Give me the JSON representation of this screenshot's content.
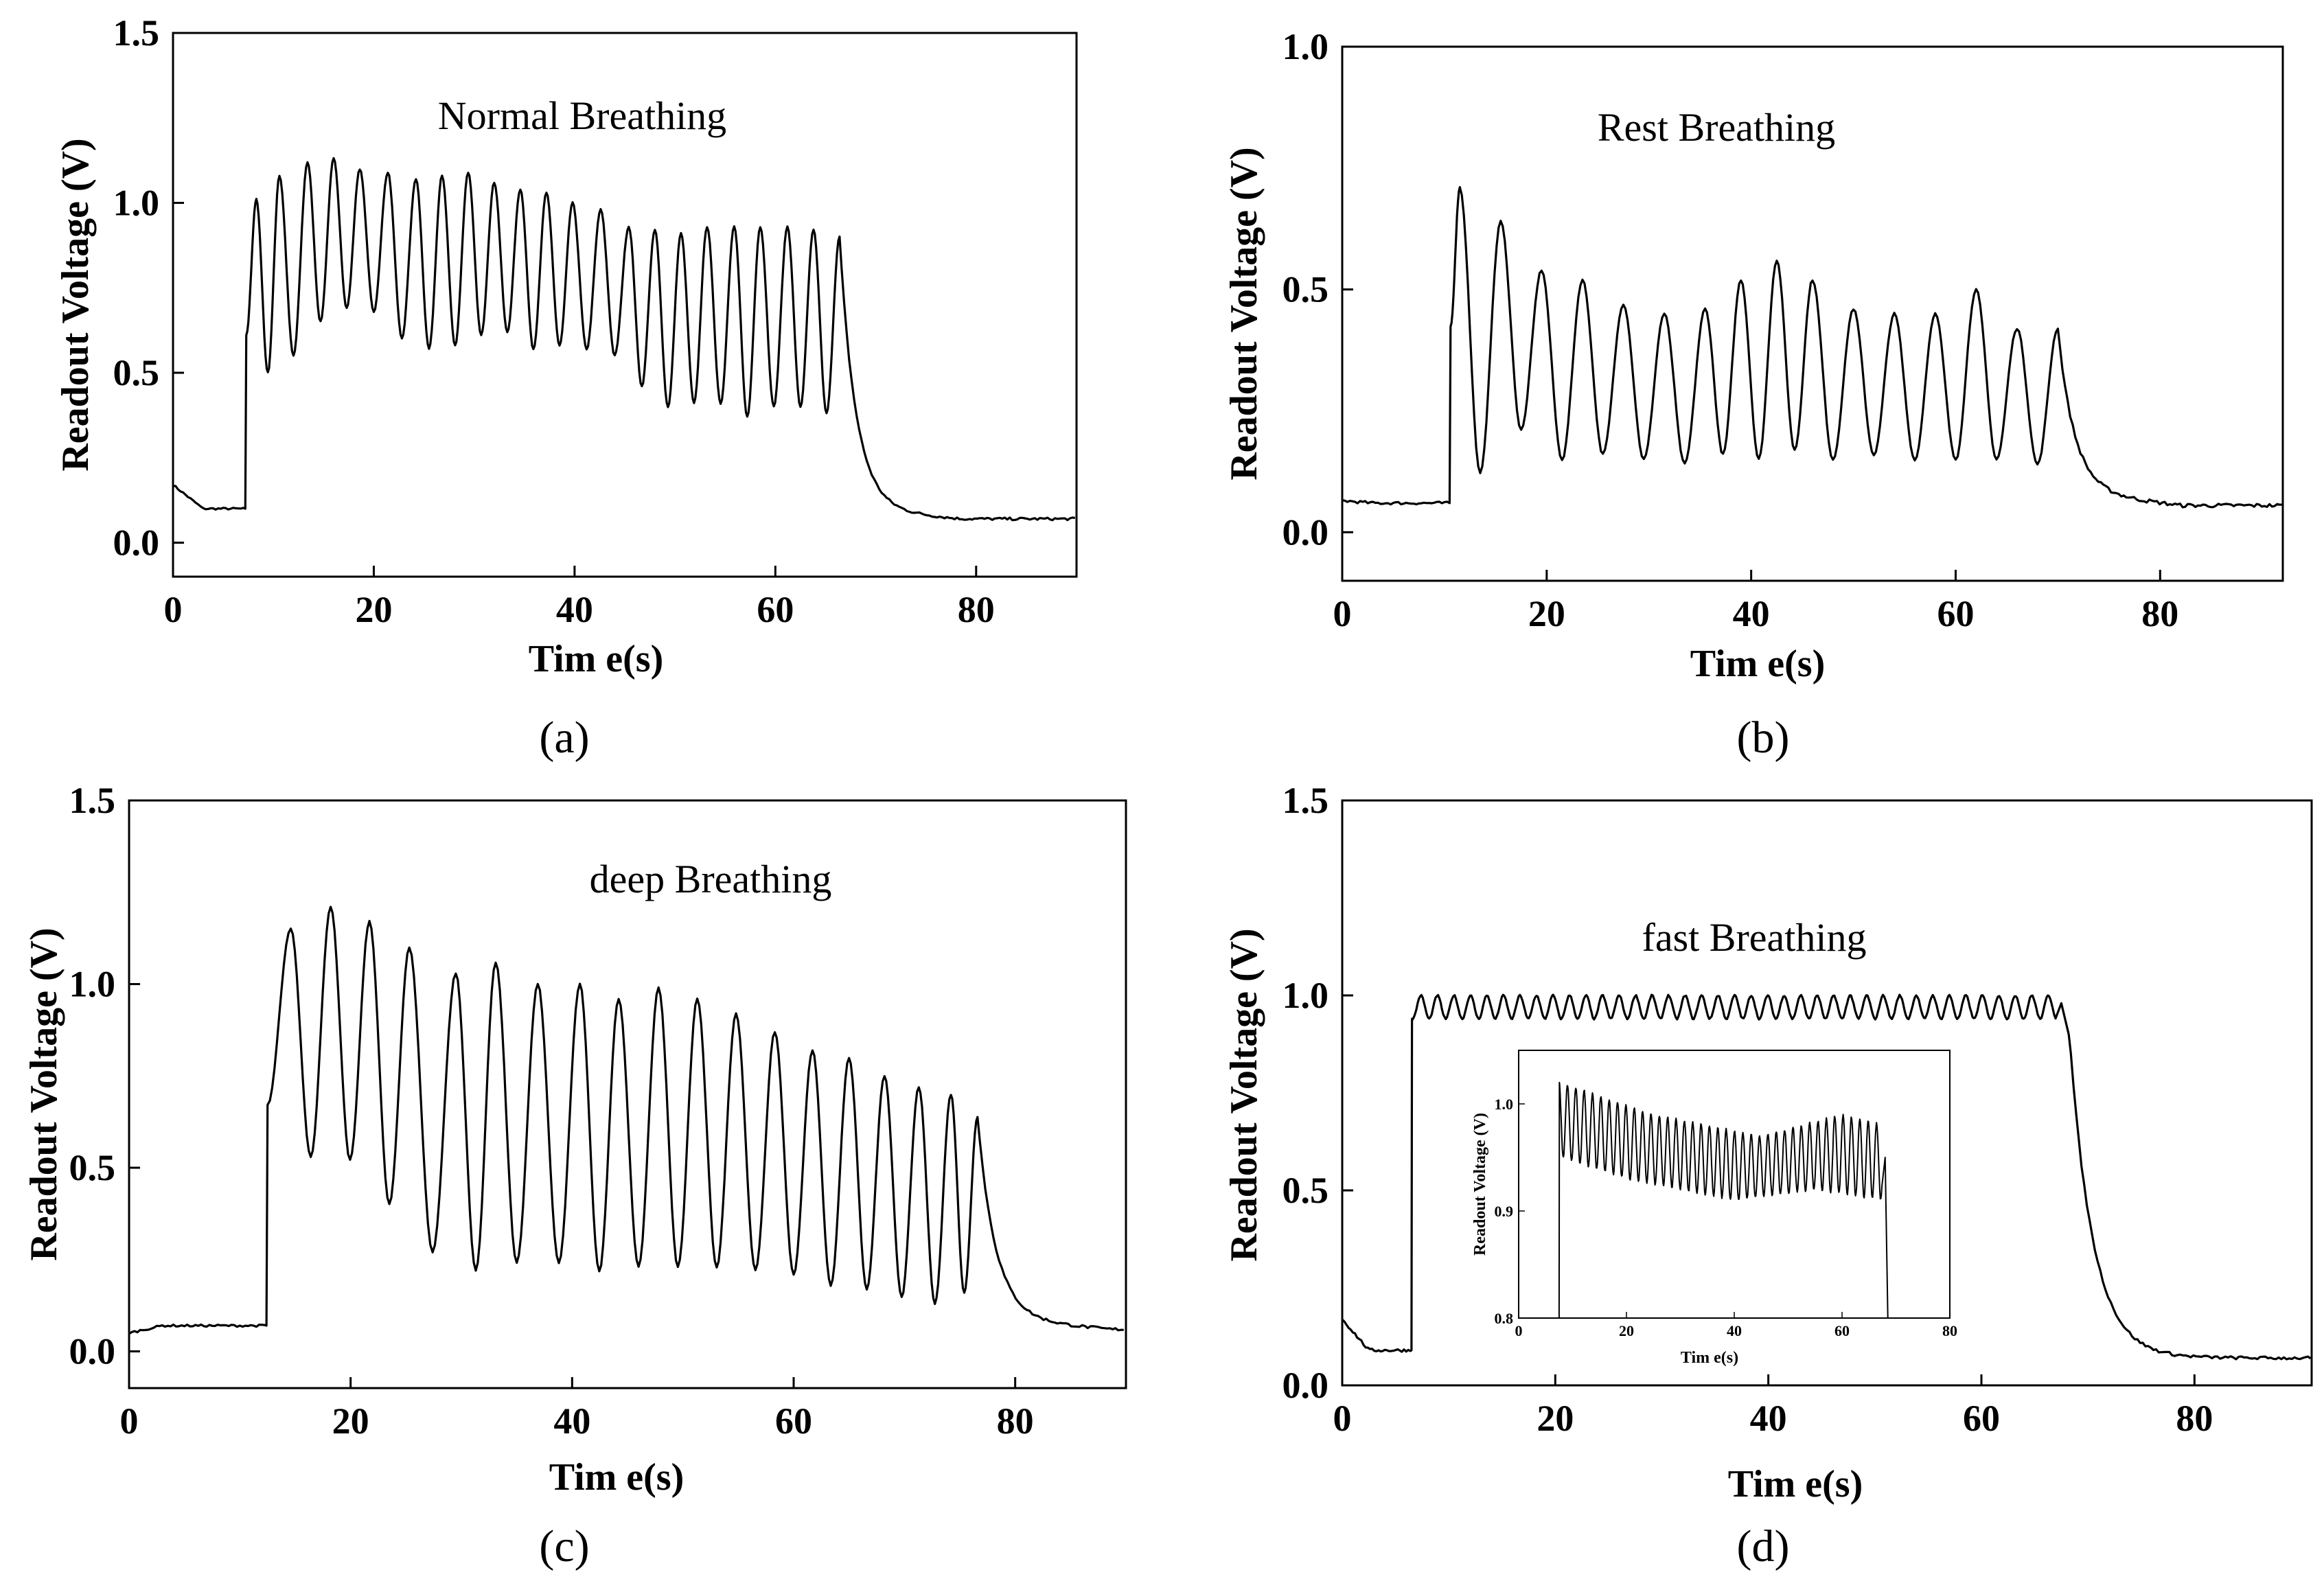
{
  "figure": {
    "subfigures": [
      "(a)",
      "(b)",
      "(c)",
      "(d)"
    ]
  },
  "chart_data": [
    {
      "id": "a",
      "type": "line",
      "panel_label": "(a)",
      "annotation": "Normal Breathing",
      "xlabel": "Tim e(s)",
      "ylabel": "Readout Voltage (V)",
      "xlim": [
        0,
        90
      ],
      "ylim": [
        -0.1,
        1.5
      ],
      "xticks": [
        0,
        20,
        40,
        60,
        80
      ],
      "xtick_labels": [
        "0",
        "20",
        "40",
        "60",
        "80"
      ],
      "yticks": [
        0.0,
        0.5,
        1.0,
        1.5
      ],
      "ytick_labels": [
        "0.0",
        "0.5",
        "1.0",
        "1.5"
      ],
      "baseline_start": 0.17,
      "baseline_settle": 0.1,
      "onset": 7.2,
      "end": 67.5,
      "tail_end": 0.07,
      "peaks": [
        [
          8.3,
          1.01
        ],
        [
          10.6,
          1.08
        ],
        [
          13.4,
          1.12
        ],
        [
          16,
          1.13
        ],
        [
          18.6,
          1.1
        ],
        [
          21.4,
          1.09
        ],
        [
          24.2,
          1.07
        ],
        [
          26.8,
          1.08
        ],
        [
          29.4,
          1.09
        ],
        [
          32,
          1.06
        ],
        [
          34.6,
          1.04
        ],
        [
          37.2,
          1.03
        ],
        [
          39.8,
          1.0
        ],
        [
          42.6,
          0.98
        ],
        [
          45.4,
          0.93
        ],
        [
          48,
          0.92
        ],
        [
          50.6,
          0.91
        ],
        [
          53.2,
          0.93
        ],
        [
          55.9,
          0.93
        ],
        [
          58.5,
          0.93
        ],
        [
          61.2,
          0.93
        ],
        [
          63.8,
          0.92
        ],
        [
          66.4,
          0.9
        ]
      ],
      "troughs": [
        0.5,
        0.55,
        0.65,
        0.69,
        0.68,
        0.6,
        0.57,
        0.58,
        0.61,
        0.62,
        0.57,
        0.58,
        0.57,
        0.55,
        0.46,
        0.4,
        0.41,
        0.41,
        0.37,
        0.4,
        0.4,
        0.38
      ],
      "inset": null
    },
    {
      "id": "b",
      "type": "line",
      "panel_label": "(b)",
      "annotation": "Rest Breathing",
      "xlabel": "Tim e(s)",
      "ylabel": "Readout Voltage (V)",
      "xlim": [
        0,
        92
      ],
      "ylim": [
        -0.1,
        1.0
      ],
      "xticks": [
        0,
        20,
        40,
        60,
        80
      ],
      "xtick_labels": [
        "0",
        "20",
        "40",
        "60",
        "80"
      ],
      "yticks": [
        0.0,
        0.5,
        1.0
      ],
      "ytick_labels": [
        "0.0",
        "0.5",
        "1.0"
      ],
      "baseline_start": 0.065,
      "baseline_settle": 0.06,
      "onset": 10.5,
      "end": 71,
      "tail_end": 0.055,
      "peaks": [
        [
          11.5,
          0.71
        ],
        [
          15.5,
          0.64
        ],
        [
          19.5,
          0.54
        ],
        [
          23.5,
          0.52
        ],
        [
          27.5,
          0.47
        ],
        [
          31.5,
          0.45
        ],
        [
          35.5,
          0.46
        ],
        [
          39,
          0.52
        ],
        [
          42.5,
          0.56
        ],
        [
          46,
          0.52
        ],
        [
          50,
          0.46
        ],
        [
          54,
          0.45
        ],
        [
          58,
          0.45
        ],
        [
          62,
          0.5
        ],
        [
          66,
          0.42
        ],
        [
          70,
          0.42
        ]
      ],
      "troughs": [
        0.12,
        0.21,
        0.15,
        0.16,
        0.15,
        0.14,
        0.16,
        0.15,
        0.17,
        0.15,
        0.16,
        0.15,
        0.15,
        0.15,
        0.14
      ],
      "inset": null
    },
    {
      "id": "c",
      "type": "line",
      "panel_label": "(c)",
      "annotation": "deep Breathing",
      "xlabel": "Tim e(s)",
      "ylabel": "Readout Voltage (V)",
      "xlim": [
        0,
        90
      ],
      "ylim": [
        -0.1,
        1.5
      ],
      "xticks": [
        0,
        20,
        40,
        60,
        80
      ],
      "xtick_labels": [
        "0",
        "20",
        "40",
        "60",
        "80"
      ],
      "yticks": [
        0.0,
        0.5,
        1.0,
        1.5
      ],
      "ytick_labels": [
        "0.0",
        "0.5",
        "1.0",
        "1.5"
      ],
      "baseline_start": 0.05,
      "baseline_settle": 0.07,
      "onset": 12.4,
      "end": 77,
      "tail_end": 0.06,
      "peaks": [
        [
          14.6,
          1.15
        ],
        [
          18.2,
          1.21
        ],
        [
          21.7,
          1.17
        ],
        [
          25.3,
          1.1
        ],
        [
          29.5,
          1.03
        ],
        [
          33.1,
          1.06
        ],
        [
          36.9,
          1.0
        ],
        [
          40.7,
          1.0
        ],
        [
          44.2,
          0.96
        ],
        [
          47.8,
          0.99
        ],
        [
          51.3,
          0.96
        ],
        [
          54.8,
          0.92
        ],
        [
          58.3,
          0.87
        ],
        [
          61.7,
          0.82
        ],
        [
          65,
          0.8
        ],
        [
          68.2,
          0.75
        ],
        [
          71.3,
          0.72
        ],
        [
          74.2,
          0.7
        ],
        [
          76.6,
          0.64
        ]
      ],
      "troughs": [
        0.53,
        0.52,
        0.4,
        0.27,
        0.22,
        0.24,
        0.24,
        0.22,
        0.23,
        0.23,
        0.23,
        0.22,
        0.21,
        0.18,
        0.17,
        0.15,
        0.13,
        0.16
      ],
      "inset": null
    },
    {
      "id": "d",
      "type": "line",
      "panel_label": "(d)",
      "annotation": "fast Breathing",
      "xlabel": "Tim e(s)",
      "ylabel": "Readout Voltage (V)",
      "xlim": [
        0,
        91
      ],
      "ylim": [
        0.0,
        1.5
      ],
      "xticks": [
        0,
        20,
        40,
        60,
        80
      ],
      "xtick_labels": [
        "0",
        "20",
        "40",
        "60",
        "80"
      ],
      "yticks": [
        0.0,
        0.5,
        1.0,
        1.5
      ],
      "ytick_labels": [
        "0.0",
        "0.5",
        "1.0",
        "1.5"
      ],
      "baseline_start": 0.17,
      "baseline_settle": 0.09,
      "onset": 6.5,
      "end": 67.8,
      "tail_end": 0.07,
      "fast": {
        "start": 7,
        "end": 67,
        "period": 1.55,
        "peak": 1.0,
        "trough": 0.94
      },
      "inset": {
        "xlabel": "Tim e(s)",
        "ylabel": "Readout Voltage (V)",
        "xlim": [
          0,
          80
        ],
        "ylim": [
          0.8,
          1.05
        ],
        "xticks": [
          0,
          20,
          40,
          60,
          80
        ],
        "xtick_labels": [
          "0",
          "20",
          "40",
          "60",
          "80"
        ],
        "yticks": [
          0.8,
          0.9,
          1.0
        ],
        "ytick_labels": [
          "0.8",
          "0.9",
          "1.0"
        ],
        "start": 7.5,
        "end": 68.5,
        "period": 1.55,
        "peak_levels": [
          [
            8,
            1.02
          ],
          [
            25,
            0.99
          ],
          [
            45,
            0.97
          ],
          [
            60,
            0.99
          ],
          [
            68,
            0.98
          ]
        ],
        "trough_levels": [
          [
            8,
            0.95
          ],
          [
            20,
            0.93
          ],
          [
            40,
            0.91
          ],
          [
            55,
            0.92
          ],
          [
            68,
            0.91
          ]
        ],
        "drop_to": 0.8
      }
    }
  ]
}
